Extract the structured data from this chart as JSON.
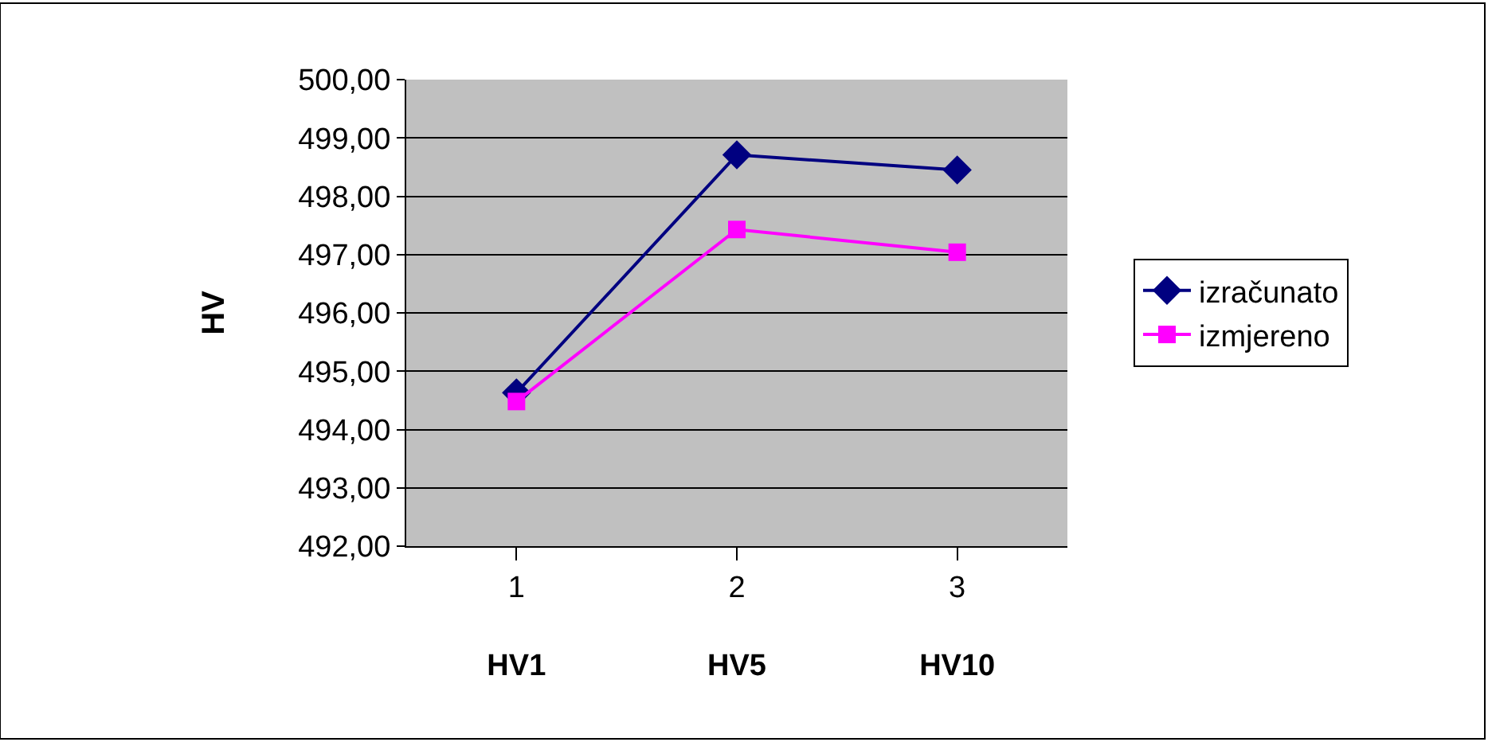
{
  "chart_data": {
    "type": "line",
    "ylabel": "HV",
    "categories": [
      "1\nHV1",
      "2\nHV5",
      "3\nHV10"
    ],
    "series": [
      {
        "name": "izračunato",
        "color": "#000080",
        "marker": "diamond",
        "values": [
          494.63,
          498.71,
          498.45
        ]
      },
      {
        "name": "izmjereno",
        "color": "#ff00ff",
        "marker": "square",
        "values": [
          494.48,
          497.43,
          497.04
        ]
      }
    ],
    "ylim": [
      492,
      500
    ],
    "yticks": [
      {
        "value": 492,
        "label": "492,00"
      },
      {
        "value": 493,
        "label": "493,00"
      },
      {
        "value": 494,
        "label": "494,00"
      },
      {
        "value": 495,
        "label": "495,00"
      },
      {
        "value": 496,
        "label": "496,00"
      },
      {
        "value": 497,
        "label": "497,00"
      },
      {
        "value": 498,
        "label": "498,00"
      },
      {
        "value": 499,
        "label": "499,00"
      },
      {
        "value": 500,
        "label": "500,00"
      }
    ],
    "grid": "y",
    "legend": "right",
    "line_style": "solid"
  }
}
